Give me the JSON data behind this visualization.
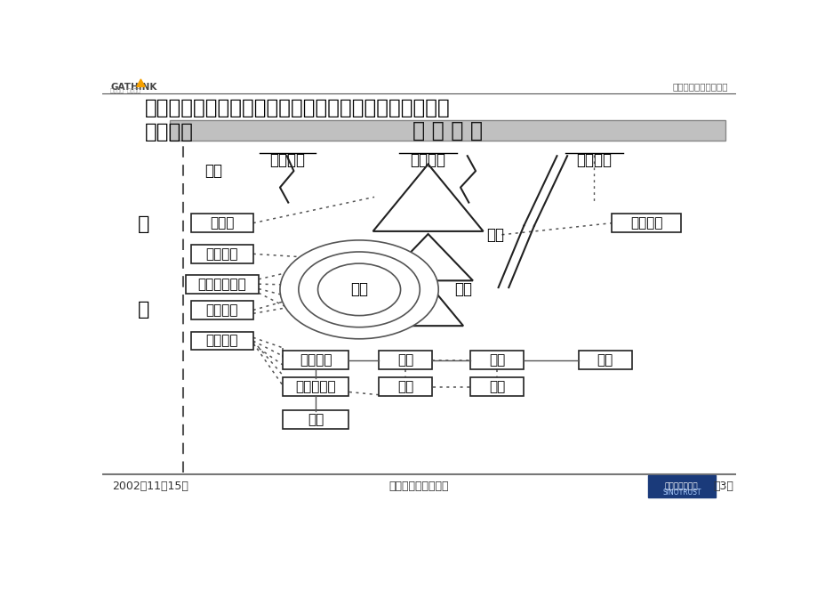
{
  "title_main": "本次项目的核心就是整合、丰富、完善国安创想人力资源\n管理框架",
  "top_right_text": "国安创想绩效考核方案",
  "company_banner": "企 业 文 化",
  "footer_left": "2002年11月15日",
  "footer_center": "保密文件、版权所有",
  "footer_right": "第3页",
  "bg_color": "#ffffff",
  "banner_color": "#b8b8b8",
  "label_training": "培训",
  "label_pinggu": "评估标准",
  "label_guanli": "管理系统",
  "label_yewu": "业务展望",
  "label_zuzhi": "组织",
  "label_renliguihua": "人力规划",
  "label_geren": "个人",
  "label_mubiao": "目标",
  "label_gou": "沟",
  "label_tong": "通"
}
